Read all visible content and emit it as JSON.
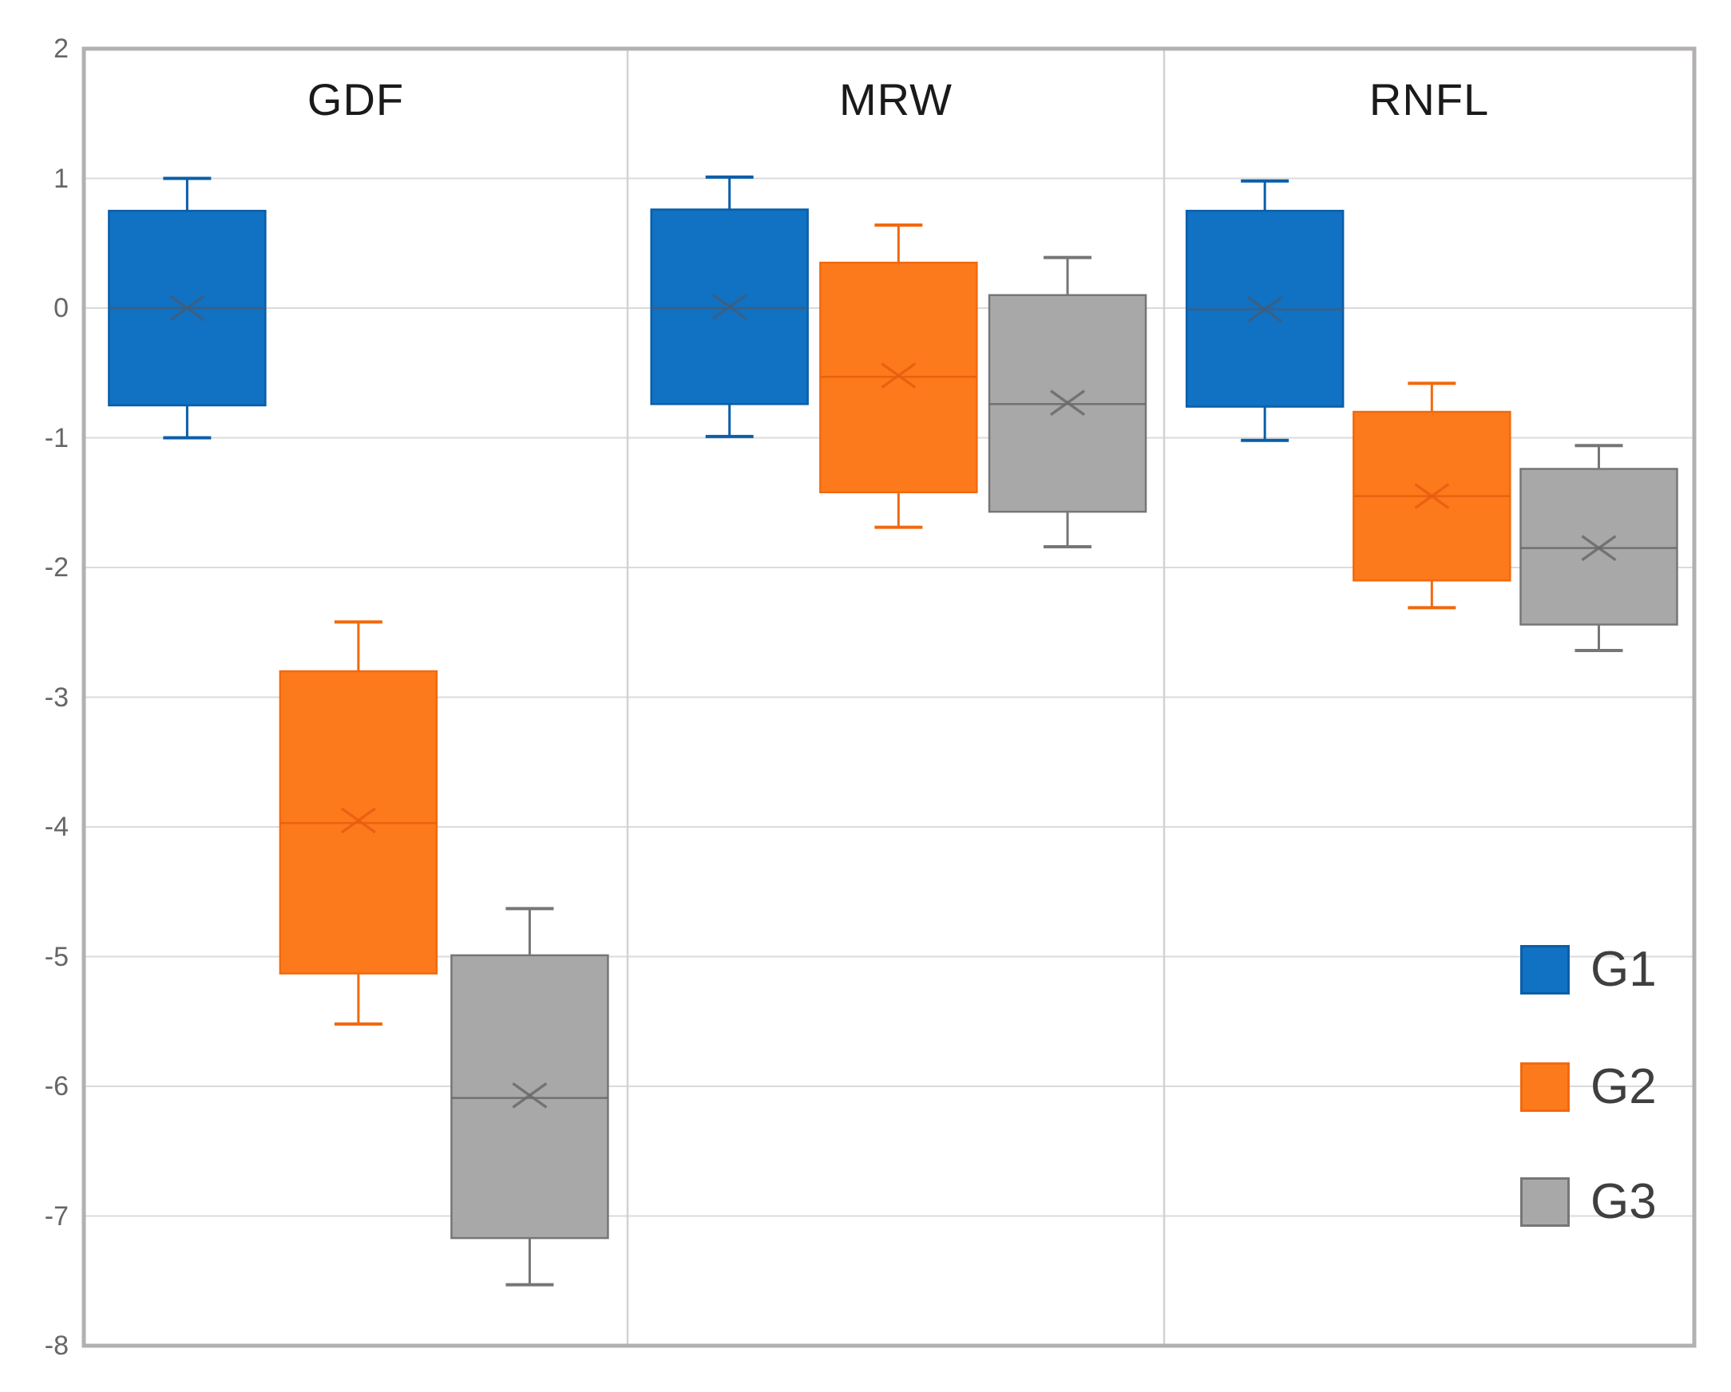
{
  "chart_data": {
    "type": "box",
    "title": "",
    "panels": [
      "GDF",
      "MRW",
      "RNFL"
    ],
    "yticks": [
      2,
      1,
      0,
      -1,
      -2,
      -3,
      -4,
      -5,
      -6,
      -7,
      -8
    ],
    "ylim": [
      -8,
      2
    ],
    "grid": true,
    "legend_position": "inside-right",
    "groups": [
      {
        "label": "G1",
        "fill": "#1171C2",
        "stroke": "#0A5EA8",
        "accent": "#3F5D7D"
      },
      {
        "label": "G2",
        "fill": "#FD7A1C",
        "stroke": "#F2690D",
        "accent": "#E85D10"
      },
      {
        "label": "G3",
        "fill": "#A8A8A8",
        "stroke": "#767676",
        "accent": "#6A6A6A"
      }
    ],
    "series": [
      {
        "panel": "GDF",
        "group": "G1",
        "whisker_low": -1.0,
        "q1": -0.75,
        "median": 0.0,
        "mean": 0.0,
        "q3": 0.75,
        "whisker_high": 1.0
      },
      {
        "panel": "GDF",
        "group": "G2",
        "whisker_low": -5.52,
        "q1": -5.13,
        "median": -3.97,
        "mean": -3.95,
        "q3": -2.8,
        "whisker_high": -2.42
      },
      {
        "panel": "GDF",
        "group": "G3",
        "whisker_low": -7.53,
        "q1": -7.17,
        "median": -6.09,
        "mean": -6.07,
        "q3": -4.99,
        "whisker_high": -4.63
      },
      {
        "panel": "MRW",
        "group": "G1",
        "whisker_low": -0.99,
        "q1": -0.74,
        "median": 0.0,
        "mean": 0.01,
        "q3": 0.76,
        "whisker_high": 1.01
      },
      {
        "panel": "MRW",
        "group": "G2",
        "whisker_low": -1.69,
        "q1": -1.42,
        "median": -0.53,
        "mean": -0.52,
        "q3": 0.35,
        "whisker_high": 0.64
      },
      {
        "panel": "MRW",
        "group": "G3",
        "whisker_low": -1.84,
        "q1": -1.57,
        "median": -0.74,
        "mean": -0.73,
        "q3": 0.1,
        "whisker_high": 0.39
      },
      {
        "panel": "RNFL",
        "group": "G1",
        "whisker_low": -1.02,
        "q1": -0.76,
        "median": -0.01,
        "mean": -0.01,
        "q3": 0.75,
        "whisker_high": 0.98
      },
      {
        "panel": "RNFL",
        "group": "G2",
        "whisker_low": -2.31,
        "q1": -2.1,
        "median": -1.45,
        "mean": -1.45,
        "q3": -0.8,
        "whisker_high": -0.58
      },
      {
        "panel": "RNFL",
        "group": "G3",
        "whisker_low": -2.64,
        "q1": -2.44,
        "median": -1.85,
        "mean": -1.85,
        "q3": -1.24,
        "whisker_high": -1.06
      }
    ],
    "colors": {
      "background": "#FFFFFF",
      "gridline": "#DBDBDB",
      "panel_divider": "#D2D2D2",
      "plot_border": "#B3B0B0",
      "tick_label": "#666666",
      "title_text": "#1A1A1A",
      "legend_text": "#3F3F3F"
    }
  }
}
